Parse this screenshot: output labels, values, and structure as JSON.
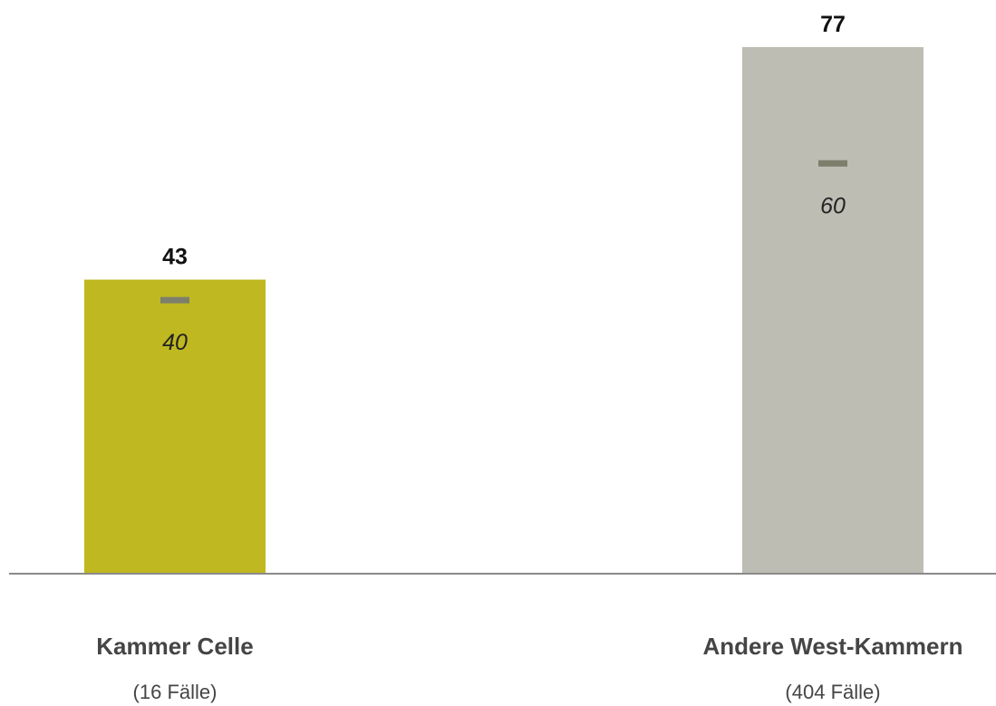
{
  "chart_data": {
    "type": "bar",
    "categories": [
      "Kammer Celle",
      "Andere West-Kammern"
    ],
    "category_notes": [
      "(16 Fälle)",
      "(404 Fälle)"
    ],
    "values": [
      43,
      77
    ],
    "reference_values": [
      40,
      60
    ],
    "ylim": [
      0,
      77
    ],
    "grid": false,
    "legend": "none",
    "colors": {
      "bars": [
        "#bfb820",
        "#bebdb3"
      ],
      "reference_marker": "#7d7f6c",
      "baseline": "#8a8a8a",
      "value_label": "#111111",
      "reference_label": "#222222"
    }
  }
}
